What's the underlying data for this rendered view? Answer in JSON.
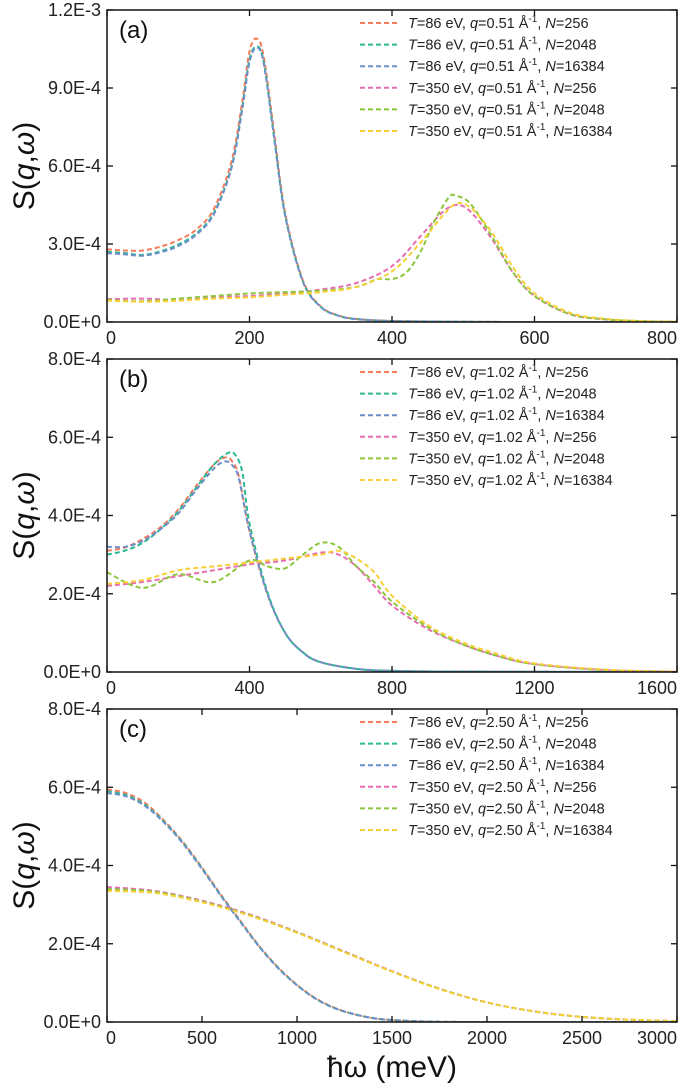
{
  "figure": {
    "xlabel": "ħω (meV)",
    "ylabel": "S(q,ω)"
  },
  "chart_data": [
    {
      "type": "line",
      "panel_label": "(a)",
      "xlim": [
        0,
        800
      ],
      "ylim": [
        0,
        0.0012
      ],
      "xticks": [
        0,
        200,
        400,
        600,
        800
      ],
      "xtick_labels": [
        "0",
        "200",
        "400",
        "600",
        "800"
      ],
      "yticks": [
        0,
        0.0003,
        0.0006,
        0.0009,
        0.0012
      ],
      "ytick_labels": [
        "0.0E+0",
        "3.0E-4",
        "6.0E-4",
        "9.0E-4",
        "1.2E-3"
      ],
      "legend_position": "top-right",
      "series": [
        {
          "name": "T=86 eV, q=0.51 Å-1, N=256",
          "T": "86",
          "q": "0.51",
          "N": "256",
          "color": "#f47b5b",
          "x": [
            0,
            25,
            50,
            75,
            100,
            125,
            150,
            175,
            190,
            200,
            210,
            220,
            235,
            250,
            275,
            300,
            325,
            350,
            400,
            500,
            600,
            800
          ],
          "y": [
            0.00028,
            0.000275,
            0.000275,
            0.00029,
            0.000315,
            0.000355,
            0.000435,
            0.00062,
            0.00085,
            0.00104,
            0.00109,
            0.00102,
            0.00072,
            0.00042,
            0.00016,
            6e-05,
            2.5e-05,
            1.2e-05,
            4e-06,
            1e-06,
            0,
            0
          ]
        },
        {
          "name": "T=86 eV, q=0.51 Å-1, N=2048",
          "T": "86",
          "q": "0.51",
          "N": "2048",
          "color": "#2bb895",
          "x": [
            0,
            25,
            50,
            75,
            100,
            125,
            150,
            175,
            190,
            200,
            210,
            220,
            235,
            250,
            275,
            300,
            325,
            350,
            400,
            500,
            600,
            800
          ],
          "y": [
            0.00027,
            0.000265,
            0.000258,
            0.000272,
            0.000298,
            0.00034,
            0.00042,
            0.0006,
            0.00083,
            0.00101,
            0.00106,
            0.001,
            0.0007,
            0.00041,
            0.000155,
            5.8e-05,
            2.4e-05,
            1.1e-05,
            4e-06,
            1e-06,
            0,
            0
          ]
        },
        {
          "name": "T=86 eV, q=0.51 Å-1, N=16384",
          "T": "86",
          "q": "0.51",
          "N": "16384",
          "color": "#6f8ec8",
          "x": [
            0,
            25,
            50,
            75,
            100,
            125,
            150,
            175,
            190,
            200,
            210,
            220,
            235,
            250,
            275,
            300,
            325,
            350,
            400,
            500,
            600,
            800
          ],
          "y": [
            0.000265,
            0.00026,
            0.000255,
            0.000268,
            0.000292,
            0.000335,
            0.000415,
            0.000595,
            0.00082,
            0.001,
            0.001055,
            0.000995,
            0.0007,
            0.00041,
            0.000155,
            5.8e-05,
            2.4e-05,
            1.1e-05,
            4e-06,
            1e-06,
            0,
            0
          ]
        },
        {
          "name": "T=350 eV, q=0.51 Å-1, N=256",
          "T": "350",
          "q": "0.51",
          "N": "256",
          "color": "#e86db0",
          "x": [
            0,
            50,
            100,
            150,
            200,
            250,
            300,
            350,
            400,
            440,
            470,
            490,
            510,
            540,
            570,
            600,
            650,
            700,
            750,
            800
          ],
          "y": [
            8.8e-05,
            9e-05,
            8.5e-05,
            9.5e-05,
            0.0001,
            0.00011,
            0.000125,
            0.00015,
            0.000215,
            0.00033,
            0.00042,
            0.00045,
            0.000425,
            0.00032,
            0.00019,
            0.0001,
            3e-05,
            1e-05,
            3e-06,
            1e-06
          ]
        },
        {
          "name": "T=350 eV, q=0.51 Å-1, N=2048",
          "T": "350",
          "q": "0.51",
          "N": "2048",
          "color": "#8cc63e",
          "x": [
            0,
            50,
            100,
            150,
            200,
            250,
            300,
            350,
            380,
            400,
            420,
            440,
            460,
            480,
            490,
            510,
            540,
            570,
            600,
            650,
            700,
            750,
            800
          ],
          "y": [
            8.5e-05,
            8e-05,
            9e-05,
            0.0001,
            0.00011,
            0.000115,
            0.00012,
            0.000135,
            0.000165,
            0.000165,
            0.00019,
            0.00027,
            0.00039,
            0.00048,
            0.000485,
            0.000455,
            0.00033,
            0.00019,
            0.0001,
            3e-05,
            1e-05,
            3e-06,
            1e-06
          ]
        },
        {
          "name": "T=350 eV, q=0.51 Å-1, N=16384",
          "T": "350",
          "q": "0.51",
          "N": "16384",
          "color": "#f7d035",
          "x": [
            0,
            50,
            100,
            150,
            200,
            250,
            300,
            350,
            400,
            440,
            470,
            490,
            510,
            540,
            570,
            600,
            650,
            700,
            750,
            800
          ],
          "y": [
            8.2e-05,
            7.8e-05,
            8.2e-05,
            9e-05,
            9.5e-05,
            0.000105,
            0.000115,
            0.000135,
            0.000195,
            0.000305,
            0.000405,
            0.000455,
            0.00044,
            0.000345,
            0.00021,
            0.00011,
            3.5e-05,
            1.2e-05,
            4e-06,
            1e-06
          ]
        }
      ]
    },
    {
      "type": "line",
      "panel_label": "(b)",
      "xlim": [
        0,
        1600
      ],
      "ylim": [
        0,
        0.0008
      ],
      "xticks": [
        0,
        400,
        800,
        1200,
        1600
      ],
      "xtick_labels": [
        "0",
        "400",
        "800",
        "1200",
        "1600"
      ],
      "yticks": [
        0,
        0.0002,
        0.0004,
        0.0006,
        0.0008
      ],
      "ytick_labels": [
        "0.0E+0",
        "2.0E-4",
        "4.0E-4",
        "6.0E-4",
        "8.0E-4"
      ],
      "legend_position": "top-right",
      "series": [
        {
          "name": "T=86 eV, q=1.02 Å-1, N=256",
          "T": "86",
          "q": "1.02",
          "N": "256",
          "color": "#f47b5b",
          "x": [
            0,
            50,
            100,
            150,
            200,
            250,
            300,
            330,
            350,
            370,
            400,
            450,
            500,
            550,
            600,
            700,
            800,
            1000,
            1600
          ],
          "y": [
            0.00031,
            0.000318,
            0.00034,
            0.00037,
            0.000415,
            0.000475,
            0.00053,
            0.000548,
            0.00054,
            0.0005,
            0.00036,
            0.0002,
            0.0001,
            5e-05,
            2.5e-05,
            8e-06,
            3e-06,
            1e-06,
            0
          ]
        },
        {
          "name": "T=86 eV, q=1.02 Å-1, N=2048",
          "T": "86",
          "q": "1.02",
          "N": "2048",
          "color": "#2bb895",
          "x": [
            0,
            50,
            100,
            150,
            200,
            250,
            300,
            340,
            360,
            380,
            400,
            450,
            500,
            550,
            600,
            700,
            800,
            1000,
            1600
          ],
          "y": [
            0.0003,
            0.00031,
            0.00033,
            0.000365,
            0.00041,
            0.00047,
            0.00053,
            0.00056,
            0.000555,
            0.00051,
            0.00038,
            0.000205,
            0.0001,
            5e-05,
            2.5e-05,
            8e-06,
            3e-06,
            1e-06,
            0
          ]
        },
        {
          "name": "T=86 eV, q=1.02 Å-1, N=16384",
          "T": "86",
          "q": "1.02",
          "N": "16384",
          "color": "#6f8ec8",
          "x": [
            0,
            50,
            100,
            150,
            200,
            250,
            300,
            330,
            350,
            370,
            400,
            450,
            500,
            550,
            600,
            700,
            800,
            1000,
            1600
          ],
          "y": [
            0.00032,
            0.00032,
            0.000335,
            0.000365,
            0.000405,
            0.000465,
            0.00052,
            0.000538,
            0.00053,
            0.000495,
            0.00036,
            0.0002,
            0.0001,
            5e-05,
            2.5e-05,
            8e-06,
            3e-06,
            1e-06,
            0
          ]
        },
        {
          "name": "T=350 eV, q=1.02 Å-1, N=256",
          "T": "350",
          "q": "1.02",
          "N": "256",
          "color": "#e86db0",
          "x": [
            0,
            100,
            200,
            300,
            400,
            500,
            600,
            650,
            700,
            750,
            800,
            900,
            1000,
            1100,
            1200,
            1400,
            1600
          ],
          "y": [
            0.00022,
            0.00023,
            0.000245,
            0.00026,
            0.000275,
            0.000285,
            0.000305,
            0.0003,
            0.00027,
            0.00022,
            0.00017,
            0.00011,
            7e-05,
            4e-05,
            2e-05,
            5e-06,
            1e-06
          ]
        },
        {
          "name": "T=350 eV, q=1.02 Å-1, N=2048",
          "T": "350",
          "q": "1.02",
          "N": "2048",
          "color": "#8cc63e",
          "x": [
            0,
            100,
            200,
            300,
            400,
            450,
            500,
            550,
            600,
            650,
            700,
            750,
            800,
            900,
            1000,
            1100,
            1200,
            1400,
            1600
          ],
          "y": [
            0.000255,
            0.000215,
            0.00025,
            0.00023,
            0.000285,
            0.00027,
            0.000265,
            0.0003,
            0.00033,
            0.00032,
            0.00027,
            0.00023,
            0.00018,
            0.000115,
            7e-05,
            4e-05,
            2e-05,
            5e-06,
            1e-06
          ]
        },
        {
          "name": "T=350 eV, q=1.02 Å-1, N=16384",
          "T": "350",
          "q": "1.02",
          "N": "16384",
          "color": "#f7d035",
          "x": [
            0,
            100,
            200,
            300,
            400,
            500,
            600,
            650,
            700,
            750,
            800,
            900,
            1000,
            1100,
            1200,
            1400,
            1600
          ],
          "y": [
            0.000225,
            0.000235,
            0.00026,
            0.00027,
            0.00028,
            0.00029,
            0.0003,
            0.00031,
            0.00029,
            0.000255,
            0.000195,
            0.00012,
            7.5e-05,
            4.5e-05,
            2.2e-05,
            6e-06,
            1e-06
          ]
        }
      ]
    },
    {
      "type": "line",
      "panel_label": "(c)",
      "xlim": [
        0,
        3000
      ],
      "ylim": [
        0,
        0.0008
      ],
      "xticks": [
        0,
        500,
        1000,
        1500,
        2000,
        2500,
        3000
      ],
      "xtick_labels": [
        "0",
        "500",
        "1000",
        "1500",
        "2000",
        "2500",
        "3000"
      ],
      "yticks": [
        0,
        0.0002,
        0.0004,
        0.0006,
        0.0008
      ],
      "ytick_labels": [
        "0.0E+0",
        "2.0E-4",
        "4.0E-4",
        "6.0E-4",
        "8.0E-4"
      ],
      "legend_position": "top-right",
      "series": [
        {
          "name": "T=86 eV, q=2.50 Å-1, N=256",
          "T": "86",
          "q": "2.50",
          "N": "256",
          "color": "#f47b5b",
          "x": [
            0,
            100,
            200,
            300,
            400,
            500,
            600,
            700,
            800,
            900,
            1000,
            1100,
            1200,
            1300,
            1400,
            1500,
            1700,
            2000,
            3000
          ],
          "y": [
            0.000595,
            0.000585,
            0.00056,
            0.000515,
            0.00046,
            0.000395,
            0.000325,
            0.00026,
            0.000195,
            0.00014,
            9.5e-05,
            6e-05,
            3.6e-05,
            2e-05,
            1e-05,
            5e-06,
            1e-06,
            0,
            0
          ]
        },
        {
          "name": "T=86 eV, q=2.50 Å-1, N=2048",
          "T": "86",
          "q": "2.50",
          "N": "2048",
          "color": "#2bb895",
          "x": [
            0,
            100,
            200,
            300,
            400,
            500,
            600,
            700,
            800,
            900,
            1000,
            1100,
            1200,
            1300,
            1400,
            1500,
            1700,
            2000,
            3000
          ],
          "y": [
            0.00059,
            0.00058,
            0.000555,
            0.000512,
            0.000458,
            0.000393,
            0.000323,
            0.000258,
            0.000194,
            0.000139,
            9.4e-05,
            5.9e-05,
            3.5e-05,
            2e-05,
            1e-05,
            5e-06,
            1e-06,
            0,
            0
          ]
        },
        {
          "name": "T=86 eV, q=2.50 Å-1, N=16384",
          "T": "86",
          "q": "2.50",
          "N": "16384",
          "color": "#6f8ec8",
          "x": [
            0,
            100,
            200,
            300,
            400,
            500,
            600,
            700,
            800,
            900,
            1000,
            1100,
            1200,
            1300,
            1400,
            1500,
            1700,
            2000,
            3000
          ],
          "y": [
            0.000585,
            0.000577,
            0.000552,
            0.00051,
            0.000456,
            0.000391,
            0.000322,
            0.000257,
            0.000193,
            0.000138,
            9.4e-05,
            5.9e-05,
            3.5e-05,
            2e-05,
            1e-05,
            5e-06,
            1e-06,
            0,
            0
          ]
        },
        {
          "name": "T=350 eV, q=2.50 Å-1, N=256",
          "T": "350",
          "q": "2.50",
          "N": "256",
          "color": "#e86db0",
          "x": [
            0,
            250,
            500,
            750,
            1000,
            1250,
            1500,
            1750,
            2000,
            2250,
            2500,
            2750,
            3000
          ],
          "y": [
            0.000345,
            0.000335,
            0.00031,
            0.000275,
            0.00023,
            0.00018,
            0.00013,
            8.5e-05,
            5e-05,
            2.7e-05,
            1.3e-05,
            6e-06,
            2e-06
          ]
        },
        {
          "name": "T=350 eV, q=2.50 Å-1, N=2048",
          "T": "350",
          "q": "2.50",
          "N": "2048",
          "color": "#8cc63e",
          "x": [
            0,
            250,
            500,
            750,
            1000,
            1250,
            1500,
            1750,
            2000,
            2250,
            2500,
            2750,
            3000
          ],
          "y": [
            0.00034,
            0.000333,
            0.000308,
            0.000273,
            0.000229,
            0.000179,
            0.000129,
            8.5e-05,
            5e-05,
            2.7e-05,
            1.3e-05,
            6e-06,
            2e-06
          ]
        },
        {
          "name": "T=350 eV, q=2.50 Å-1, N=16384",
          "T": "350",
          "q": "2.50",
          "N": "16384",
          "color": "#f7d035",
          "x": [
            0,
            250,
            500,
            750,
            1000,
            1250,
            1500,
            1750,
            2000,
            2250,
            2500,
            2750,
            3000
          ],
          "y": [
            0.000335,
            0.00033,
            0.000306,
            0.000272,
            0.000228,
            0.000178,
            0.000129,
            8.4e-05,
            5e-05,
            2.7e-05,
            1.3e-05,
            6e-06,
            2e-06
          ]
        }
      ]
    }
  ]
}
